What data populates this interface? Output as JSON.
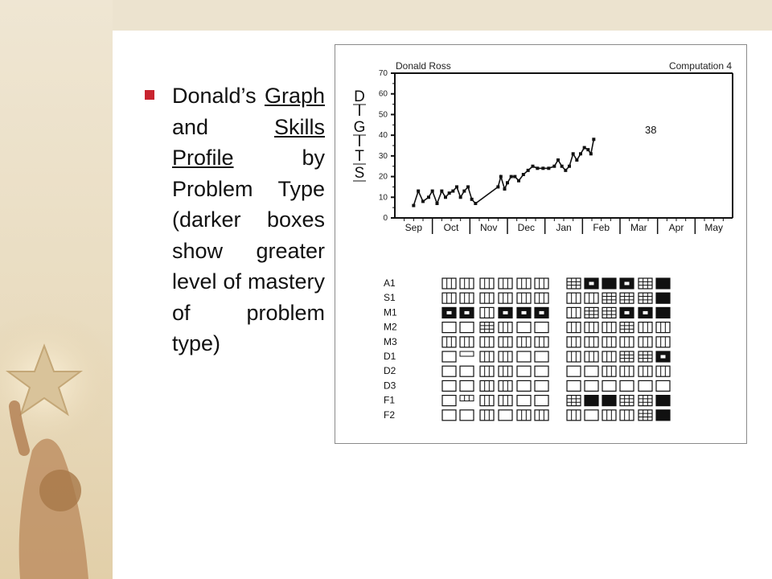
{
  "bullet": {
    "text_parts": [
      {
        "text": "Donald’s ",
        "underline": false
      },
      {
        "text": "Graph",
        "underline": true
      },
      {
        "text": " and ",
        "underline": false
      },
      {
        "text": "Skills Profile",
        "underline": true
      },
      {
        "text": " by Problem Type (darker boxes show greater level of mastery of problem type)",
        "underline": false
      }
    ]
  },
  "colors": {
    "bullet": "#c8242f",
    "ink": "#111111",
    "band": "#ece3cf"
  },
  "chart_data": {
    "type": "line",
    "title_left": "Donald Ross",
    "title_right": "Computation 4",
    "ylabel": "DIGITS",
    "ylabel_letters": [
      "D",
      "I",
      "G",
      "I",
      "T",
      "S"
    ],
    "ylim": [
      0,
      70
    ],
    "yticks": [
      "0",
      "10",
      "20",
      "30",
      "40",
      "50",
      "60",
      "70"
    ],
    "months": [
      "Sep",
      "Oct",
      "Nov",
      "Dec",
      "Jan",
      "Feb",
      "Mar",
      "Apr",
      "May"
    ],
    "x_range": [
      0,
      36
    ],
    "annotation": "38",
    "series": [
      {
        "x": [
          2,
          2.5,
          3,
          3.6,
          4,
          4.5,
          5,
          5.4,
          5.8,
          6.2,
          6.6,
          7,
          7.4,
          7.8,
          8.2,
          8.6,
          11,
          11.3,
          11.7,
          12,
          12.4,
          12.8,
          13.2,
          13.7,
          14.2,
          14.7,
          15.2,
          15.8,
          16.4,
          17,
          17.4,
          17.8,
          18.2,
          18.6,
          19,
          19.4,
          19.8,
          20.2,
          20.6,
          20.9,
          21.2
        ],
        "y": [
          6,
          13,
          8,
          10,
          13,
          7,
          13,
          10,
          12,
          13,
          15,
          10,
          13,
          15,
          9,
          7,
          15,
          20,
          14,
          17,
          20,
          20,
          18,
          21,
          23,
          25,
          24,
          24,
          24,
          25,
          28,
          25,
          23,
          25,
          31,
          28,
          31,
          34,
          33,
          31,
          38
        ]
      }
    ],
    "skills_profile": {
      "rows": [
        "A1",
        "S1",
        "M1",
        "M2",
        "M3",
        "D1",
        "D2",
        "D3",
        "F1",
        "F2"
      ],
      "legend": "darker boxes show greater level of mastery of problem type",
      "cells": [
        [
          "v",
          "v",
          "v",
          "v",
          "v",
          "v",
          "g",
          "d",
          "s",
          "d",
          "g",
          "s"
        ],
        [
          "v",
          "v",
          "v",
          "v",
          "v",
          "v",
          "v",
          "v",
          "g",
          "g",
          "g",
          "s"
        ],
        [
          "d",
          "d",
          "v",
          "d",
          "d",
          "d",
          "v",
          "g",
          "g",
          "d",
          "d",
          "s"
        ],
        [
          "e",
          "e",
          "g",
          "v",
          "e",
          "e",
          "v",
          "v",
          "v",
          "g",
          "v",
          "v"
        ],
        [
          "v",
          "v",
          "v",
          "v",
          "v",
          "v",
          "v",
          "v",
          "v",
          "v",
          "v",
          "v"
        ],
        [
          "e",
          "t",
          "v",
          "v",
          "e",
          "e",
          "v",
          "v",
          "v",
          "g",
          "g",
          "d"
        ],
        [
          "e",
          "e",
          "v",
          "v",
          "e",
          "e",
          "e",
          "e",
          "v",
          "v",
          "v",
          "v"
        ],
        [
          "e",
          "e",
          "v",
          "v",
          "e",
          "e",
          "e",
          "e",
          "e",
          "e",
          "e",
          "e"
        ],
        [
          "e",
          "h",
          "v",
          "v",
          "e",
          "e",
          "g",
          "s",
          "s",
          "g",
          "g",
          "s"
        ],
        [
          "e",
          "e",
          "v",
          "e",
          "v",
          "v",
          "v",
          "e",
          "v",
          "v",
          "g",
          "s"
        ]
      ]
    }
  }
}
